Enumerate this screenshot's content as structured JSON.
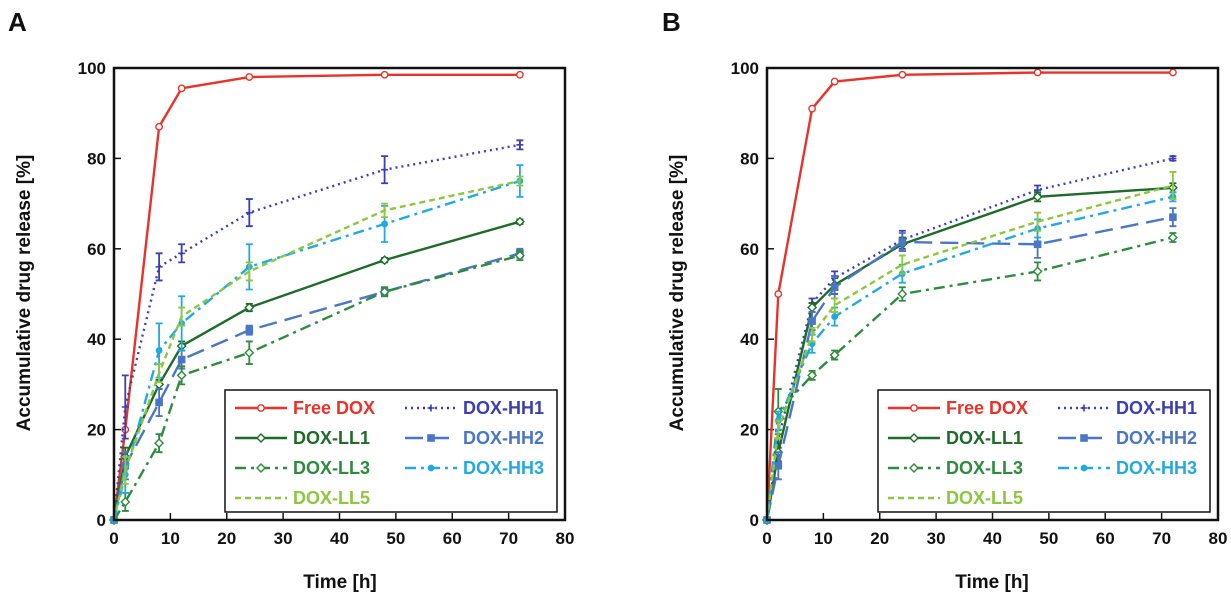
{
  "chart_data": [
    {
      "panel_label": "A",
      "type": "line",
      "xlabel": "Time [h]",
      "ylabel": "Accumulative drug release [%]",
      "xlim": [
        0,
        80
      ],
      "ylim": [
        0,
        100
      ],
      "xticks": [
        "0",
        "10",
        "20",
        "30",
        "40",
        "50",
        "60",
        "70",
        "80"
      ],
      "yticks": [
        "0",
        "20",
        "40",
        "60",
        "80",
        "100"
      ],
      "grid": false,
      "legend_position": "bottom-right",
      "x": [
        0,
        2,
        8,
        12,
        24,
        48,
        72
      ],
      "series": [
        {
          "name": "Free DOX",
          "color": "#e8332a",
          "dash": "solid",
          "marker": "open-circle",
          "values": [
            0,
            20,
            87,
            95.5,
            98,
            98.5,
            98.5
          ],
          "errors": [
            0,
            0,
            0,
            0,
            0,
            0,
            0
          ]
        },
        {
          "name": "DOX-HH1",
          "color": "#3b3fb0",
          "dash": "dot",
          "marker": "plus",
          "values": [
            0,
            25,
            56,
            59,
            68,
            77.5,
            83
          ],
          "errors": [
            0,
            7,
            3,
            2,
            3,
            3,
            1
          ]
        },
        {
          "name": "DOX-LL1",
          "color": "#1e6b2a",
          "dash": "solid",
          "marker": "open-diamond",
          "values": [
            0,
            14,
            30,
            38.5,
            47,
            57.5,
            66
          ],
          "errors": [
            0,
            2,
            1,
            1,
            0.8,
            0.5,
            0.5
          ]
        },
        {
          "name": "DOX-HH2",
          "color": "#4b76c4",
          "dash": "longdash",
          "marker": "square",
          "values": [
            0,
            12,
            26,
            35.5,
            42,
            50.5,
            59
          ],
          "errors": [
            0,
            3,
            3,
            2,
            1,
            1,
            1
          ]
        },
        {
          "name": "DOX-LL3",
          "color": "#2e8b3e",
          "dash": "dashdot",
          "marker": "open-diamond",
          "values": [
            0,
            4,
            17,
            32,
            37,
            50.5,
            58.5
          ],
          "errors": [
            0,
            2,
            2,
            2,
            2.5,
            1,
            1
          ]
        },
        {
          "name": "DOX-HH3",
          "color": "#23a9e1",
          "dash": "dashdot",
          "marker": "dot",
          "values": [
            0,
            10,
            37.5,
            43.5,
            56,
            65.5,
            75
          ],
          "errors": [
            0,
            4,
            6,
            6,
            5,
            4,
            3.5
          ]
        },
        {
          "name": "DOX-LL5",
          "color": "#8dc63f",
          "dash": "dash",
          "marker": "none",
          "values": [
            0,
            11,
            32.5,
            45,
            55,
            68.5,
            75
          ],
          "errors": [
            0,
            3,
            2,
            2,
            2,
            1.5,
            1
          ]
        }
      ]
    },
    {
      "panel_label": "B",
      "type": "line",
      "xlabel": "Time [h]",
      "ylabel": "Accumulative drug release [%]",
      "xlim": [
        0,
        80
      ],
      "ylim": [
        0,
        100
      ],
      "xticks": [
        "0",
        "10",
        "20",
        "30",
        "40",
        "50",
        "60",
        "70",
        "80"
      ],
      "yticks": [
        "0",
        "20",
        "40",
        "60",
        "80",
        "100"
      ],
      "grid": false,
      "legend_position": "bottom-right",
      "x": [
        0,
        2,
        8,
        12,
        24,
        48,
        72
      ],
      "series": [
        {
          "name": "Free DOX",
          "color": "#e8332a",
          "dash": "solid",
          "marker": "open-circle",
          "values": [
            0,
            50,
            91,
            97,
            98.5,
            99,
            99
          ],
          "errors": [
            0,
            0,
            0,
            0,
            0,
            0,
            0
          ]
        },
        {
          "name": "DOX-HH1",
          "color": "#3b3fb0",
          "dash": "dot",
          "marker": "plus",
          "values": [
            0,
            18,
            48,
            53.5,
            62,
            73,
            80
          ],
          "errors": [
            0,
            2,
            1,
            1.5,
            2,
            1,
            0.5
          ]
        },
        {
          "name": "DOX-LL1",
          "color": "#1e6b2a",
          "dash": "solid",
          "marker": "open-diamond",
          "values": [
            0,
            15,
            47,
            52,
            61,
            71.5,
            73.5
          ],
          "errors": [
            0,
            2,
            1,
            2,
            1.5,
            1,
            1
          ]
        },
        {
          "name": "DOX-HH2",
          "color": "#4b76c4",
          "dash": "longdash",
          "marker": "square",
          "values": [
            0,
            12,
            44,
            51.5,
            61.5,
            61,
            67
          ],
          "errors": [
            0,
            3,
            2,
            2.5,
            2,
            3,
            2
          ]
        },
        {
          "name": "DOX-LL3",
          "color": "#2e8b3e",
          "dash": "dashdot",
          "marker": "open-diamond",
          "values": [
            0,
            24,
            32,
            36.5,
            50,
            55,
            62.5
          ],
          "errors": [
            0,
            5,
            1,
            1,
            1.5,
            2,
            1
          ]
        },
        {
          "name": "DOX-HH3",
          "color": "#23a9e1",
          "dash": "dashdot",
          "marker": "dot",
          "values": [
            0,
            22,
            39,
            45,
            54.5,
            64.5,
            71.5
          ],
          "errors": [
            0,
            2,
            2,
            2,
            2,
            2,
            1
          ]
        },
        {
          "name": "DOX-LL5",
          "color": "#8dc63f",
          "dash": "dash",
          "marker": "none",
          "values": [
            0,
            20,
            41,
            47.5,
            56.5,
            66,
            74
          ],
          "errors": [
            0,
            2,
            1.5,
            1.5,
            2,
            2,
            3
          ]
        }
      ]
    }
  ]
}
